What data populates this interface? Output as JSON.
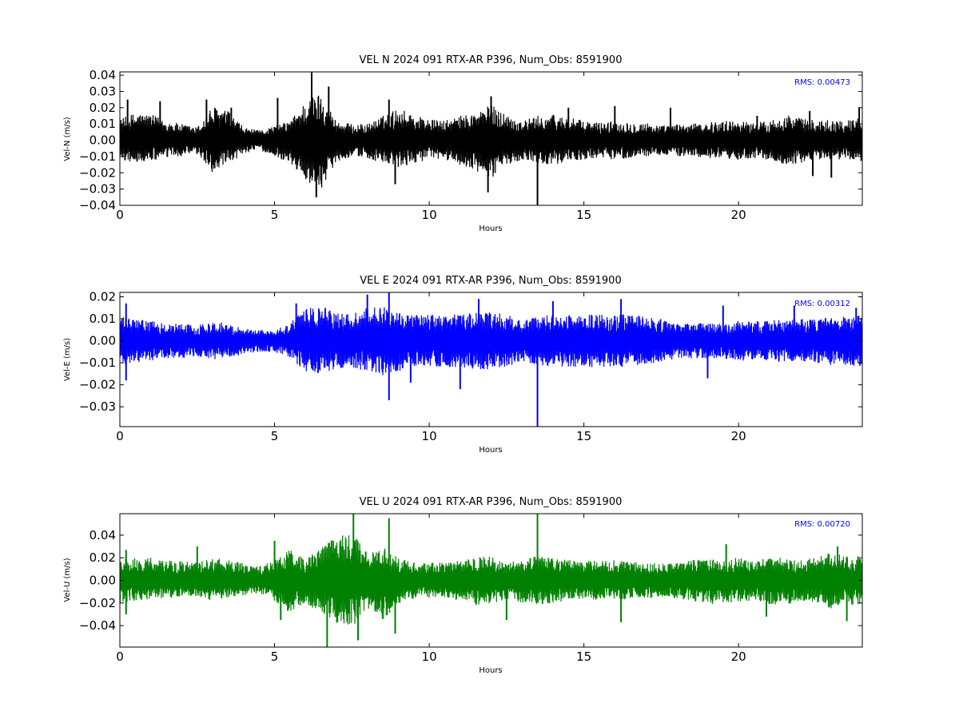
{
  "chart_data": [
    {
      "type": "line",
      "title": "VEL N 2024 091 RTX-AR  P396, Num_Obs: 8591900",
      "xlabel": "Hours",
      "ylabel": "Vel-N (m/s)",
      "xlim": [
        0,
        24
      ],
      "ylim": [
        -0.04,
        0.042
      ],
      "xticks": [
        0,
        5,
        10,
        15,
        20
      ],
      "xtick_labels": [
        "0",
        "5",
        "10",
        "15",
        "20"
      ],
      "yticks": [
        -0.04,
        -0.03,
        -0.02,
        -0.01,
        0.0,
        0.01,
        0.02,
        0.03,
        0.04
      ],
      "ytick_labels": [
        "−0.04",
        "−0.03",
        "−0.02",
        "−0.01",
        "0.00",
        "0.01",
        "0.02",
        "0.03",
        "0.04"
      ],
      "color": "#000000",
      "rms_label": "RMS:  0.00473",
      "rms_color": "#0000ff",
      "grid": false,
      "series": [
        {
          "x": [
            0,
            0.5,
            1,
            1.5,
            2,
            2.5,
            3,
            3.5,
            4,
            4.5,
            5,
            5.5,
            6,
            6.5,
            7,
            7.5,
            8,
            8.5,
            9,
            9.5,
            10,
            10.5,
            11,
            11.5,
            12,
            12.5,
            13,
            13.5,
            14,
            14.5,
            15,
            15.5,
            16,
            16.5,
            17,
            17.5,
            18,
            18.5,
            19,
            19.5,
            20,
            20.5,
            21,
            21.5,
            22,
            22.5,
            23,
            23.5,
            24
          ],
          "upper": [
            0.013,
            0.017,
            0.016,
            0.012,
            0.01,
            0.008,
            0.021,
            0.018,
            0.008,
            0.006,
            0.009,
            0.012,
            0.024,
            0.03,
            0.012,
            0.01,
            0.01,
            0.015,
            0.02,
            0.016,
            0.013,
            0.012,
            0.015,
            0.017,
            0.022,
            0.016,
            0.012,
            0.015,
            0.016,
            0.014,
            0.012,
            0.011,
            0.012,
            0.011,
            0.011,
            0.009,
            0.01,
            0.01,
            0.011,
            0.012,
            0.012,
            0.011,
            0.012,
            0.016,
            0.014,
            0.012,
            0.013,
            0.012,
            0.015
          ],
          "lower": [
            -0.012,
            -0.014,
            -0.013,
            -0.011,
            -0.01,
            -0.009,
            -0.02,
            -0.016,
            -0.008,
            -0.006,
            -0.01,
            -0.014,
            -0.025,
            -0.03,
            -0.013,
            -0.01,
            -0.011,
            -0.015,
            -0.018,
            -0.014,
            -0.012,
            -0.012,
            -0.015,
            -0.02,
            -0.024,
            -0.015,
            -0.012,
            -0.014,
            -0.015,
            -0.013,
            -0.012,
            -0.011,
            -0.012,
            -0.011,
            -0.01,
            -0.009,
            -0.01,
            -0.01,
            -0.011,
            -0.012,
            -0.012,
            -0.011,
            -0.012,
            -0.016,
            -0.014,
            -0.012,
            -0.012,
            -0.012,
            -0.013
          ],
          "spikes": [
            {
              "x": 0.25,
              "y": 0.025
            },
            {
              "x": 1.3,
              "y": 0.024
            },
            {
              "x": 2.8,
              "y": 0.025
            },
            {
              "x": 3.6,
              "y": 0.02
            },
            {
              "x": 5.1,
              "y": 0.026
            },
            {
              "x": 6.2,
              "y": 0.042
            },
            {
              "x": 6.75,
              "y": 0.033
            },
            {
              "x": 6.35,
              "y": -0.035
            },
            {
              "x": 8.7,
              "y": 0.025
            },
            {
              "x": 8.9,
              "y": -0.027
            },
            {
              "x": 12.0,
              "y": 0.027
            },
            {
              "x": 11.9,
              "y": -0.032
            },
            {
              "x": 13.5,
              "y": -0.042
            },
            {
              "x": 14.5,
              "y": 0.02
            },
            {
              "x": 16.0,
              "y": 0.021
            },
            {
              "x": 17.8,
              "y": 0.02
            },
            {
              "x": 20.6,
              "y": 0.015
            },
            {
              "x": 22.3,
              "y": 0.018
            },
            {
              "x": 22.4,
              "y": -0.022
            },
            {
              "x": 23.0,
              "y": -0.023
            },
            {
              "x": 23.9,
              "y": 0.02
            }
          ]
        }
      ]
    },
    {
      "type": "line",
      "title": "VEL E 2024 091 RTX-AR  P396, Num_Obs: 8591900",
      "xlabel": "Hours",
      "ylabel": "Vel-E (m/s)",
      "xlim": [
        0,
        24
      ],
      "ylim": [
        -0.039,
        0.022
      ],
      "xticks": [
        0,
        5,
        10,
        15,
        20
      ],
      "xtick_labels": [
        "0",
        "5",
        "10",
        "15",
        "20"
      ],
      "yticks": [
        -0.03,
        -0.02,
        -0.01,
        0.0,
        0.01,
        0.02
      ],
      "ytick_labels": [
        "−0.03",
        "−0.02",
        "−0.01",
        "0.00",
        "0.01",
        "0.02"
      ],
      "color": "#0000ff",
      "rms_label": "RMS:  0.00312",
      "rms_color": "#0000ff",
      "grid": false,
      "series": [
        {
          "x": [
            0,
            0.5,
            1,
            1.5,
            2,
            2.5,
            3,
            3.5,
            4,
            4.5,
            5,
            5.5,
            6,
            6.5,
            7,
            7.5,
            8,
            8.5,
            9,
            9.5,
            10,
            10.5,
            11,
            11.5,
            12,
            12.5,
            13,
            13.5,
            14,
            14.5,
            15,
            15.5,
            16,
            16.5,
            17,
            17.5,
            18,
            18.5,
            19,
            19.5,
            20,
            20.5,
            21,
            21.5,
            22,
            22.5,
            23,
            23.5,
            24
          ],
          "upper": [
            0.011,
            0.01,
            0.009,
            0.008,
            0.008,
            0.007,
            0.009,
            0.008,
            0.006,
            0.005,
            0.005,
            0.008,
            0.015,
            0.016,
            0.013,
            0.012,
            0.015,
            0.016,
            0.014,
            0.012,
            0.012,
            0.012,
            0.012,
            0.013,
            0.013,
            0.012,
            0.009,
            0.011,
            0.012,
            0.012,
            0.012,
            0.012,
            0.012,
            0.012,
            0.011,
            0.01,
            0.008,
            0.008,
            0.008,
            0.008,
            0.009,
            0.009,
            0.009,
            0.01,
            0.01,
            0.01,
            0.011,
            0.011,
            0.012
          ],
          "lower": [
            -0.011,
            -0.01,
            -0.009,
            -0.008,
            -0.008,
            -0.007,
            -0.009,
            -0.008,
            -0.006,
            -0.005,
            -0.005,
            -0.008,
            -0.014,
            -0.015,
            -0.013,
            -0.012,
            -0.014,
            -0.016,
            -0.014,
            -0.012,
            -0.012,
            -0.012,
            -0.012,
            -0.013,
            -0.013,
            -0.012,
            -0.009,
            -0.011,
            -0.012,
            -0.012,
            -0.012,
            -0.012,
            -0.012,
            -0.012,
            -0.011,
            -0.01,
            -0.008,
            -0.008,
            -0.008,
            -0.008,
            -0.009,
            -0.009,
            -0.009,
            -0.01,
            -0.01,
            -0.01,
            -0.011,
            -0.011,
            -0.012
          ],
          "spikes": [
            {
              "x": 0.2,
              "y": 0.017
            },
            {
              "x": 0.2,
              "y": -0.018
            },
            {
              "x": 5.7,
              "y": 0.017
            },
            {
              "x": 8.0,
              "y": 0.021
            },
            {
              "x": 8.7,
              "y": 0.022
            },
            {
              "x": 8.7,
              "y": -0.027
            },
            {
              "x": 9.4,
              "y": -0.019
            },
            {
              "x": 11.0,
              "y": -0.022
            },
            {
              "x": 11.6,
              "y": 0.019
            },
            {
              "x": 13.5,
              "y": -0.039
            },
            {
              "x": 14.0,
              "y": 0.018
            },
            {
              "x": 16.2,
              "y": 0.019
            },
            {
              "x": 19.0,
              "y": -0.017
            },
            {
              "x": 19.5,
              "y": 0.016
            },
            {
              "x": 21.8,
              "y": 0.016
            },
            {
              "x": 23.8,
              "y": 0.015
            }
          ]
        }
      ]
    },
    {
      "type": "line",
      "title": "VEL U 2024 091 RTX-AR  P396, Num_Obs: 8591900",
      "xlabel": "Hours",
      "ylabel": "Vel-U (m/s)",
      "xlim": [
        0,
        24
      ],
      "ylim": [
        -0.059,
        0.059
      ],
      "xticks": [
        0,
        5,
        10,
        15,
        20
      ],
      "xtick_labels": [
        "0",
        "5",
        "10",
        "15",
        "20"
      ],
      "yticks": [
        -0.04,
        -0.02,
        0.0,
        0.02,
        0.04
      ],
      "ytick_labels": [
        "−0.04",
        "−0.02",
        "0.00",
        "0.02",
        "0.04"
      ],
      "color": "#008000",
      "rms_label": "RMS:  0.00720",
      "rms_color": "#0000ff",
      "grid": false,
      "series": [
        {
          "x": [
            0,
            0.5,
            1,
            1.5,
            2,
            2.5,
            3,
            3.5,
            4,
            4.5,
            5,
            5.5,
            6,
            6.5,
            7,
            7.5,
            8,
            8.5,
            9,
            9.5,
            10,
            10.5,
            11,
            11.5,
            12,
            12.5,
            13,
            13.5,
            14,
            14.5,
            15,
            15.5,
            16,
            16.5,
            17,
            17.5,
            18,
            18.5,
            19,
            19.5,
            20,
            20.5,
            21,
            21.5,
            22,
            22.5,
            23,
            23.5,
            24
          ],
          "upper": [
            0.022,
            0.02,
            0.02,
            0.018,
            0.017,
            0.016,
            0.02,
            0.018,
            0.015,
            0.013,
            0.018,
            0.028,
            0.018,
            0.03,
            0.04,
            0.042,
            0.025,
            0.03,
            0.02,
            0.016,
            0.016,
            0.016,
            0.018,
            0.02,
            0.022,
            0.016,
            0.018,
            0.022,
            0.02,
            0.018,
            0.018,
            0.017,
            0.018,
            0.017,
            0.016,
            0.015,
            0.016,
            0.018,
            0.02,
            0.02,
            0.02,
            0.018,
            0.02,
            0.02,
            0.018,
            0.02,
            0.025,
            0.022,
            0.022
          ],
          "lower": [
            -0.02,
            -0.018,
            -0.018,
            -0.016,
            -0.015,
            -0.014,
            -0.018,
            -0.016,
            -0.013,
            -0.012,
            -0.018,
            -0.03,
            -0.02,
            -0.03,
            -0.038,
            -0.042,
            -0.025,
            -0.035,
            -0.022,
            -0.016,
            -0.016,
            -0.016,
            -0.018,
            -0.022,
            -0.022,
            -0.016,
            -0.02,
            -0.022,
            -0.02,
            -0.018,
            -0.018,
            -0.017,
            -0.018,
            -0.017,
            -0.016,
            -0.015,
            -0.016,
            -0.018,
            -0.022,
            -0.02,
            -0.02,
            -0.018,
            -0.022,
            -0.022,
            -0.018,
            -0.02,
            -0.025,
            -0.022,
            -0.022
          ],
          "spikes": [
            {
              "x": 0.2,
              "y": 0.027
            },
            {
              "x": 0.2,
              "y": -0.03
            },
            {
              "x": 2.5,
              "y": 0.03
            },
            {
              "x": 5.0,
              "y": 0.035
            },
            {
              "x": 5.2,
              "y": -0.035
            },
            {
              "x": 6.7,
              "y": -0.059
            },
            {
              "x": 7.55,
              "y": 0.059
            },
            {
              "x": 7.7,
              "y": -0.053
            },
            {
              "x": 8.7,
              "y": 0.055
            },
            {
              "x": 8.9,
              "y": -0.047
            },
            {
              "x": 12.5,
              "y": -0.035
            },
            {
              "x": 13.5,
              "y": 0.059
            },
            {
              "x": 16.2,
              "y": -0.037
            },
            {
              "x": 19.6,
              "y": 0.032
            },
            {
              "x": 20.9,
              "y": -0.032
            },
            {
              "x": 23.2,
              "y": 0.03
            },
            {
              "x": 23.5,
              "y": -0.036
            }
          ]
        }
      ]
    }
  ]
}
